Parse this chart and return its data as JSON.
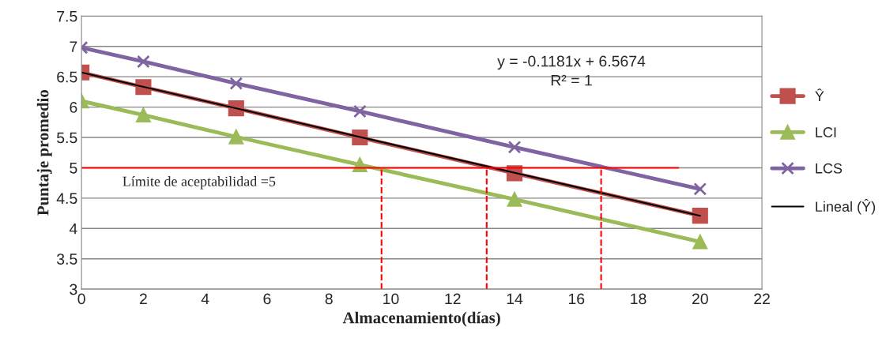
{
  "chart_data": {
    "type": "line",
    "xlabel": "Almacenamiento(días)",
    "ylabel": "Puntaje promedio",
    "x": [
      0,
      2,
      5,
      9,
      14,
      20
    ],
    "xlim": [
      0,
      22
    ],
    "xticks": [
      0,
      2,
      4,
      6,
      8,
      10,
      12,
      14,
      16,
      18,
      20,
      22
    ],
    "ylim": [
      3,
      7.5
    ],
    "yticks": [
      3,
      3.5,
      4,
      4.5,
      5,
      5.5,
      6,
      6.5,
      7,
      7.5
    ],
    "grid": "y",
    "legend": "right",
    "series": [
      {
        "name": "Ŷ",
        "color": "#c0504d",
        "marker": "square",
        "values": [
          6.57,
          6.33,
          5.98,
          5.5,
          4.91,
          4.21
        ]
      },
      {
        "name": "LCI",
        "color": "#9bbb59",
        "marker": "triangle",
        "values": [
          6.1,
          5.87,
          5.51,
          5.05,
          4.48,
          3.78
        ]
      },
      {
        "name": "LCS",
        "color": "#8064a2",
        "marker": "cross",
        "values": [
          6.98,
          6.75,
          6.39,
          5.93,
          5.34,
          4.65
        ]
      },
      {
        "name": "Lineal (Ŷ)",
        "color": "#000000",
        "marker": "none",
        "x": [
          0,
          20
        ],
        "values": [
          6.57,
          4.21
        ]
      },
      {
        "color": "#ff0000",
        "marker": "none",
        "x": [
          0,
          19.3
        ],
        "values": [
          5,
          5
        ]
      },
      {
        "color": "#ff0000",
        "marker": "none",
        "line_style": "dashed",
        "x": [
          9.7,
          9.7
        ],
        "values": [
          3,
          5
        ]
      },
      {
        "color": "#ff0000",
        "marker": "none",
        "line_style": "dashed",
        "x": [
          13.1,
          13.1
        ],
        "values": [
          3,
          5
        ]
      },
      {
        "color": "#ff0000",
        "marker": "none",
        "line_style": "dashed",
        "x": [
          16.8,
          16.8
        ],
        "values": [
          3,
          5
        ]
      }
    ],
    "annotations": [
      "Límite de aceptabilidad =5",
      "y = -0.1181x + 6.5674",
      "R² = 1"
    ]
  }
}
